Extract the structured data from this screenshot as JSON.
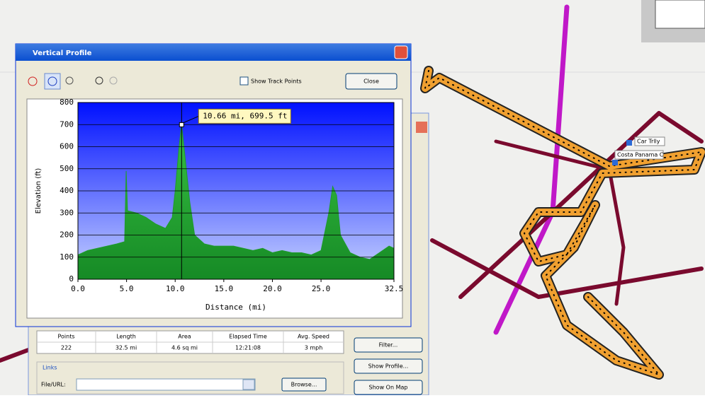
{
  "window": {
    "title": "Vertical Profile",
    "close_button": "Close",
    "show_track_points": "Show Track Points"
  },
  "chart_data": {
    "type": "area",
    "xlabel": "Distance  (mi)",
    "ylabel": "Elevation (ft)",
    "x": [
      0,
      1,
      2,
      3,
      4,
      4.8,
      4.96,
      5.1,
      6,
      7,
      8,
      9,
      9.7,
      10,
      10.4,
      10.66,
      11,
      11.5,
      12,
      13,
      14,
      15,
      16,
      17,
      18,
      19,
      20,
      21,
      22,
      23,
      24,
      25,
      25.8,
      26.2,
      26.6,
      27,
      28,
      29,
      30,
      31,
      32,
      32.5
    ],
    "values": [
      110,
      130,
      140,
      150,
      160,
      170,
      490,
      310,
      300,
      280,
      250,
      230,
      280,
      400,
      600,
      699.5,
      560,
      350,
      200,
      160,
      150,
      150,
      150,
      140,
      130,
      140,
      120,
      130,
      120,
      120,
      110,
      130,
      300,
      420,
      380,
      200,
      120,
      100,
      90,
      120,
      150,
      140
    ],
    "color": "#1f9a2c",
    "xlim": [
      0,
      32.5
    ],
    "ylim": [
      0,
      800
    ],
    "xticks": [
      {
        "value": 0,
        "label": "0.0"
      },
      {
        "value": 5,
        "label": "5.0"
      },
      {
        "value": 10,
        "label": "10.0"
      },
      {
        "value": 15,
        "label": "15.0"
      },
      {
        "value": 20,
        "label": "20.0"
      },
      {
        "value": 25,
        "label": "25.0"
      },
      {
        "value": 32.5,
        "label": "32.5"
      }
    ],
    "yticks": [
      0,
      100,
      200,
      300,
      400,
      500,
      600,
      700,
      800
    ],
    "grid": true,
    "annotation": {
      "text": "10.66 mi, 699.5 ft",
      "x": 10.66,
      "y": 699.5
    }
  },
  "stats": {
    "headers": [
      "Points",
      "Length",
      "Area",
      "Elapsed Time",
      "Avg. Speed"
    ],
    "values": [
      "222",
      "32.5 mi",
      "4.6 sq mi",
      "12:21:08",
      "3 mph"
    ]
  },
  "links": {
    "title": "Links",
    "file_label": "File/URL:",
    "browse": "Browse..."
  },
  "buttons": [
    "Filter...",
    "Show Profile...",
    "Show On Map"
  ],
  "map_labels": [
    "Car Trlly",
    "Costa Panama C"
  ]
}
